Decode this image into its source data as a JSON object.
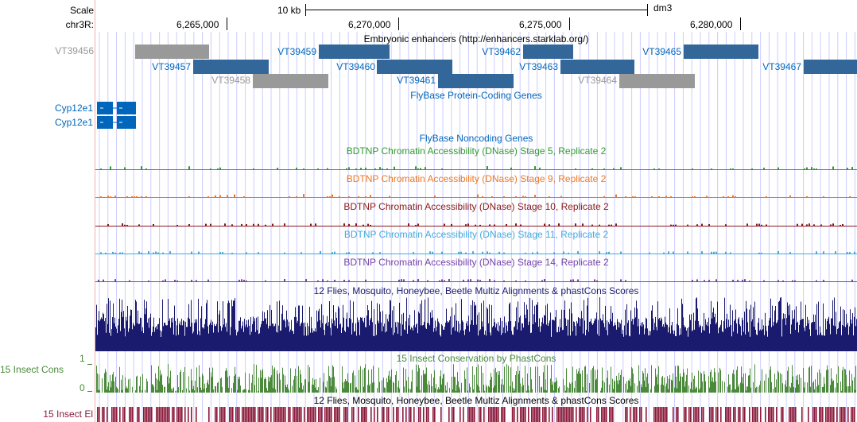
{
  "scale": {
    "label": "Scale",
    "bar_label": "10 kb",
    "assembly": "dm3"
  },
  "ruler": {
    "chrom_label": "chr3R:",
    "ticks": [
      "6,265,000",
      "6,270,000",
      "6,275,000",
      "6,280,000"
    ]
  },
  "tracks": {
    "enhancers": {
      "title": "Embryonic enhancers (http://enhancers.starklab.org/)",
      "items": [
        {
          "name": "VT39456",
          "color": "grey"
        },
        {
          "name": "VT39457",
          "color": "blue"
        },
        {
          "name": "VT39458",
          "color": "grey"
        },
        {
          "name": "VT39459",
          "color": "blue"
        },
        {
          "name": "VT39460",
          "color": "blue"
        },
        {
          "name": "VT39461",
          "color": "blue"
        },
        {
          "name": "VT39462",
          "color": "blue"
        },
        {
          "name": "VT39463",
          "color": "blue"
        },
        {
          "name": "VT39464",
          "color": "grey"
        },
        {
          "name": "VT39465",
          "color": "blue"
        },
        {
          "name": "VT39467",
          "color": "blue"
        }
      ]
    },
    "protein_coding": {
      "title": "FlyBase Protein-Coding Genes",
      "genes": [
        "Cyp12e1",
        "Cyp12e1"
      ]
    },
    "noncoding": {
      "title": "FlyBase Noncoding Genes"
    },
    "dnase": [
      {
        "title": "BDTNP Chromatin Accessibility (DNase) Stage 5, Replicate 2",
        "color": "#339933"
      },
      {
        "title": "BDTNP Chromatin Accessibility (DNase) Stage 9, Replicate 2",
        "color": "#ee7722"
      },
      {
        "title": "BDTNP Chromatin Accessibility (DNase) Stage 10, Replicate 2",
        "color": "#8b1a1a"
      },
      {
        "title": "BDTNP Chromatin Accessibility (DNase) Stage 11, Replicate 2",
        "color": "#44aadd"
      },
      {
        "title": "BDTNP Chromatin Accessibility (DNase) Stage 14, Replicate 2",
        "color": "#7744aa"
      }
    ],
    "multiz": {
      "title": "12 Flies, Mosquito, Honeybee, Beetle Multiz Alignments & phastCons Scores",
      "color": "#1a1a6e"
    },
    "phastcons": {
      "title": "15 Insect Conservation by PhastCons",
      "side_label": "15 Insect Cons",
      "y_max": "1",
      "y_min": "0",
      "color": "#4a8a3a"
    },
    "elements": {
      "title": "12 Flies, Mosquito, Honeybee, Beetle Multiz Alignments & phastCons Scores",
      "side_label": "15 Insect El",
      "color": "#8b1a3a"
    }
  },
  "colors": {
    "blue_link": "#0066bb",
    "enhancer_blue": "#336699",
    "enhancer_grey": "#999999",
    "grid": "#ccccff"
  }
}
